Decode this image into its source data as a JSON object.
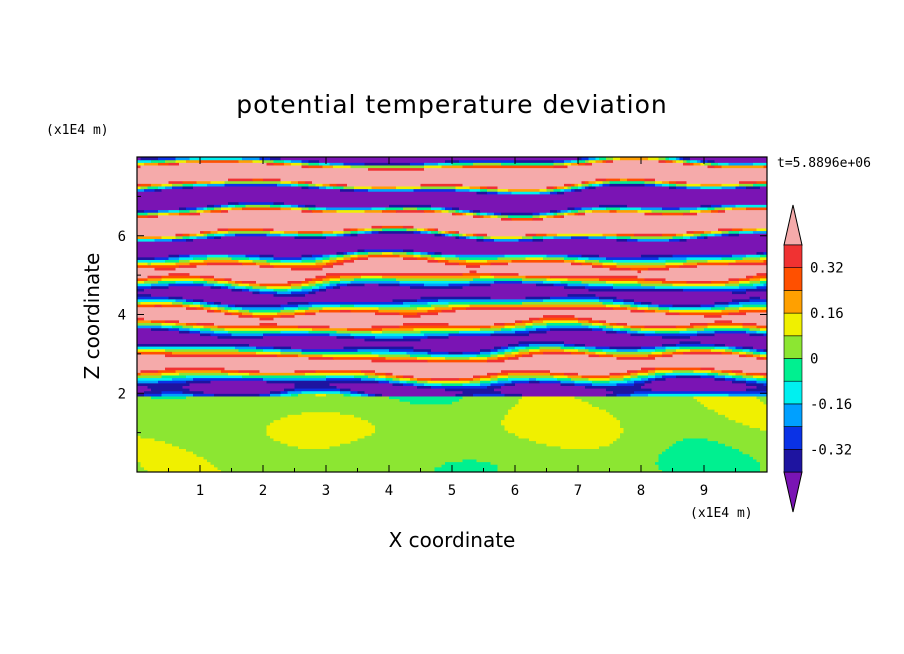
{
  "chart_data": {
    "type": "heatmap",
    "title": "potential temperature deviation",
    "xlabel": "X coordinate",
    "ylabel": "Z coordinate",
    "x_unit": "(x1E4 m)",
    "z_unit": "(x1E4 m)",
    "time_label": "t=5.8896e+06",
    "xlim": [
      0,
      10
    ],
    "zlim": [
      0,
      8
    ],
    "x_ticks": [
      "1",
      "2",
      "3",
      "4",
      "5",
      "6",
      "7",
      "8",
      "9"
    ],
    "z_ticks": [
      "2",
      "4",
      "6"
    ],
    "colorbar": {
      "tick_labels": [
        "0.32",
        "0.16",
        "0",
        "-0.16",
        "-0.32"
      ],
      "tick_values": [
        0.32,
        0.16,
        0,
        -0.16,
        -0.32
      ],
      "levels": [
        -0.4,
        -0.32,
        -0.24,
        -0.16,
        -0.08,
        0,
        0.08,
        0.16,
        0.24,
        0.32,
        0.4
      ],
      "colors": [
        "#7a14b4",
        "#1e14a0",
        "#0a32e6",
        "#00a0ff",
        "#00f0f0",
        "#00f090",
        "#8ce632",
        "#f0f000",
        "#ffa000",
        "#ff5000",
        "#f03232",
        "#f5aaaa"
      ],
      "extend": "both"
    },
    "layers": [
      {
        "zmin": 0,
        "zmax": 2,
        "description": "lower layer",
        "dominant_colors": [
          "#00f090",
          "#8ce632"
        ]
      },
      {
        "zmin": 2,
        "zmax": 5.5,
        "description": "mixed layer",
        "dominant_colors": [
          "#f5aaaa",
          "#7a14b4",
          "#00f0f0",
          "#8ce632",
          "#ff5000"
        ]
      },
      {
        "zmin": 5.5,
        "zmax": 8,
        "description": "upper layer",
        "dominant_colors": [
          "#f5aaaa",
          "#7a14b4"
        ]
      }
    ]
  }
}
